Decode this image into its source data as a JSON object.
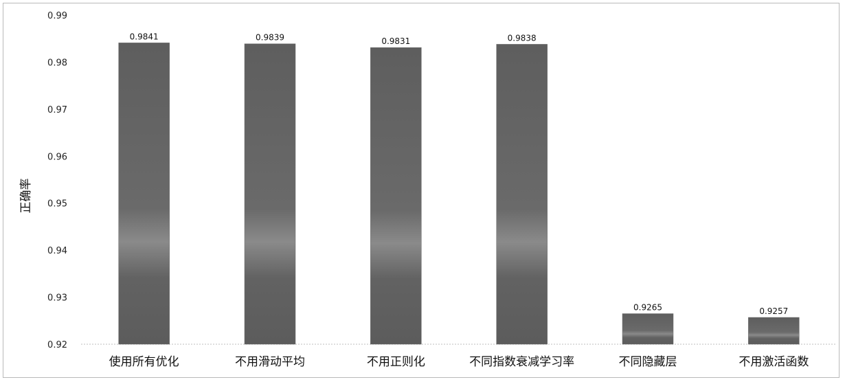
{
  "chart_data": {
    "type": "bar",
    "title": "",
    "xlabel": "",
    "ylabel": "正确率",
    "ylim": [
      0.92,
      0.99
    ],
    "yticks": [
      "0.92",
      "0.93",
      "0.94",
      "0.95",
      "0.96",
      "0.97",
      "0.98",
      "0.99"
    ],
    "categories": [
      "使用所有优化",
      "不用滑动平均",
      "不用正则化",
      "不同指数衰减学习率",
      "不同隐藏层",
      "不用激活函数"
    ],
    "values": [
      0.9841,
      0.9839,
      0.9831,
      0.9838,
      0.9265,
      0.9257
    ],
    "value_labels": [
      "0.9841",
      "0.9839",
      "0.9831",
      "0.9838",
      "0.9265",
      "0.9257"
    ],
    "bar_color": "#6b6b6b",
    "grid": false,
    "legend": "none"
  }
}
